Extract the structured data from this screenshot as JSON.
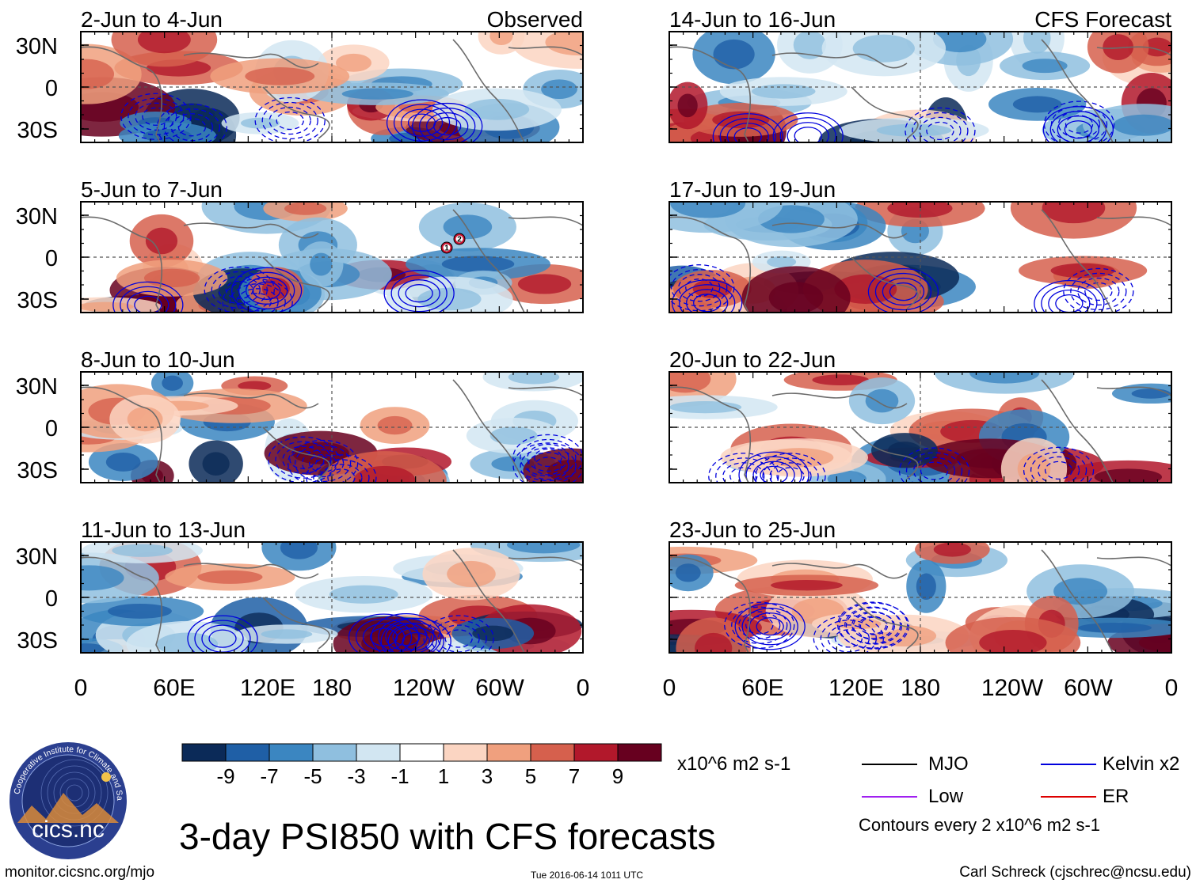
{
  "figure": {
    "title": "3-day PSI850 with CFS forecasts",
    "units": "x10^6 m2 s-1",
    "observed_label": "Observed",
    "forecast_label": "CFS Forecast",
    "footer_left": "monitor.cicsnc.org/mjo",
    "footer_mid": "Tue 2016-06-14 1011 UTC",
    "footer_right": "Carl Schreck (cjschrec@ncsu.edu)",
    "logo_text": "cics.nc",
    "logo_ring_text": "Cooperative Institute for Climate and Satellites",
    "contour_note": "Contours every 2 x10^6 m2 s-1"
  },
  "panels": [
    {
      "label": "2-Jun to 4-Jun",
      "column": "observed"
    },
    {
      "label": "5-Jun to 7-Jun",
      "column": "observed"
    },
    {
      "label": "8-Jun to 10-Jun",
      "column": "observed"
    },
    {
      "label": "11-Jun to 13-Jun",
      "column": "observed"
    },
    {
      "label": "14-Jun to 16-Jun",
      "column": "forecast"
    },
    {
      "label": "17-Jun to 19-Jun",
      "column": "forecast"
    },
    {
      "label": "20-Jun to 22-Jun",
      "column": "forecast"
    },
    {
      "label": "23-Jun to 25-Jun",
      "column": "forecast"
    }
  ],
  "lat_labels": [
    "30N",
    "0",
    "30S"
  ],
  "lon_labels": [
    "0",
    "60E",
    "120E",
    "180",
    "120W",
    "60W",
    "0"
  ],
  "colorbar": {
    "tick_labels": [
      "-9",
      "-7",
      "-5",
      "-3",
      "-1",
      "1",
      "3",
      "5",
      "7",
      "9"
    ],
    "colors": [
      "#0b2a58",
      "#1f5fa6",
      "#3b86c1",
      "#8fbfdf",
      "#d2e6f2",
      "#ffffff",
      "#fbd5c2",
      "#f0a07e",
      "#d6604d",
      "#b2182b",
      "#67001f"
    ]
  },
  "legend": [
    {
      "label": "MJO",
      "color": "#000000"
    },
    {
      "label": "Kelvin x2",
      "color": "#0000dd"
    },
    {
      "label": "Low",
      "color": "#a020f0"
    },
    {
      "label": "ER",
      "color": "#dd0000"
    }
  ],
  "storm_markers": [
    "1",
    "2"
  ]
}
